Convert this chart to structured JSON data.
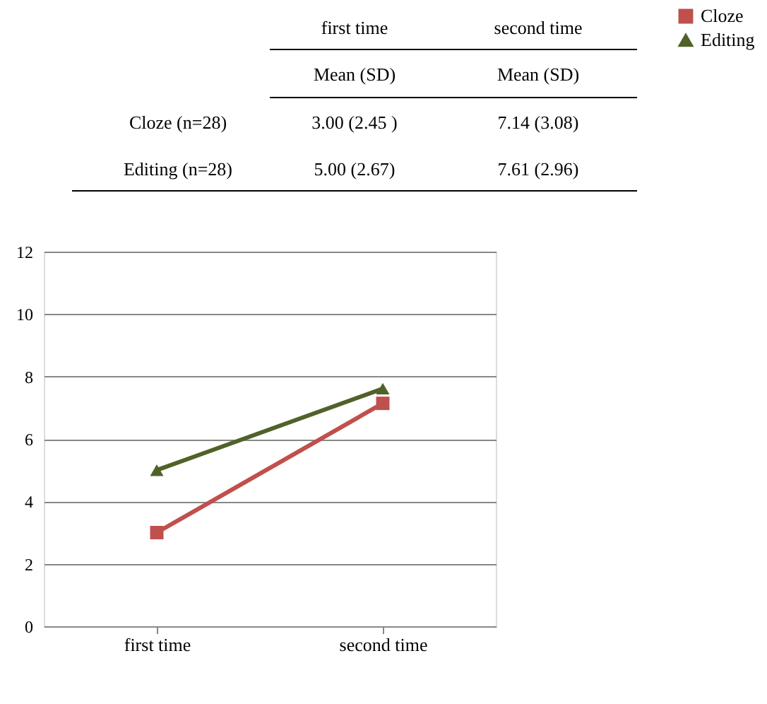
{
  "chart_data": {
    "type": "line",
    "categories": [
      "first time",
      "second time"
    ],
    "annotations": [
      "Mean (SD)",
      "Mean (SD)",
      "Cloze (n=28)",
      "3.00 (2.45 )",
      "7.14 (3.08)",
      "Editing (n=28)",
      "5.00 (2.67)",
      "7.61 (2.96)"
    ],
    "series": [
      {
        "name": "Cloze",
        "color": "#c0504d",
        "marker": "square",
        "values": [
          3.0,
          7.14
        ]
      },
      {
        "name": "Editing",
        "color": "#4f6228",
        "marker": "triangle",
        "values": [
          5.0,
          7.61
        ]
      }
    ],
    "ylim": [
      0,
      12
    ],
    "yticks": [
      0,
      2,
      4,
      6,
      8,
      10,
      12
    ],
    "grid": "y",
    "legend": "right"
  }
}
